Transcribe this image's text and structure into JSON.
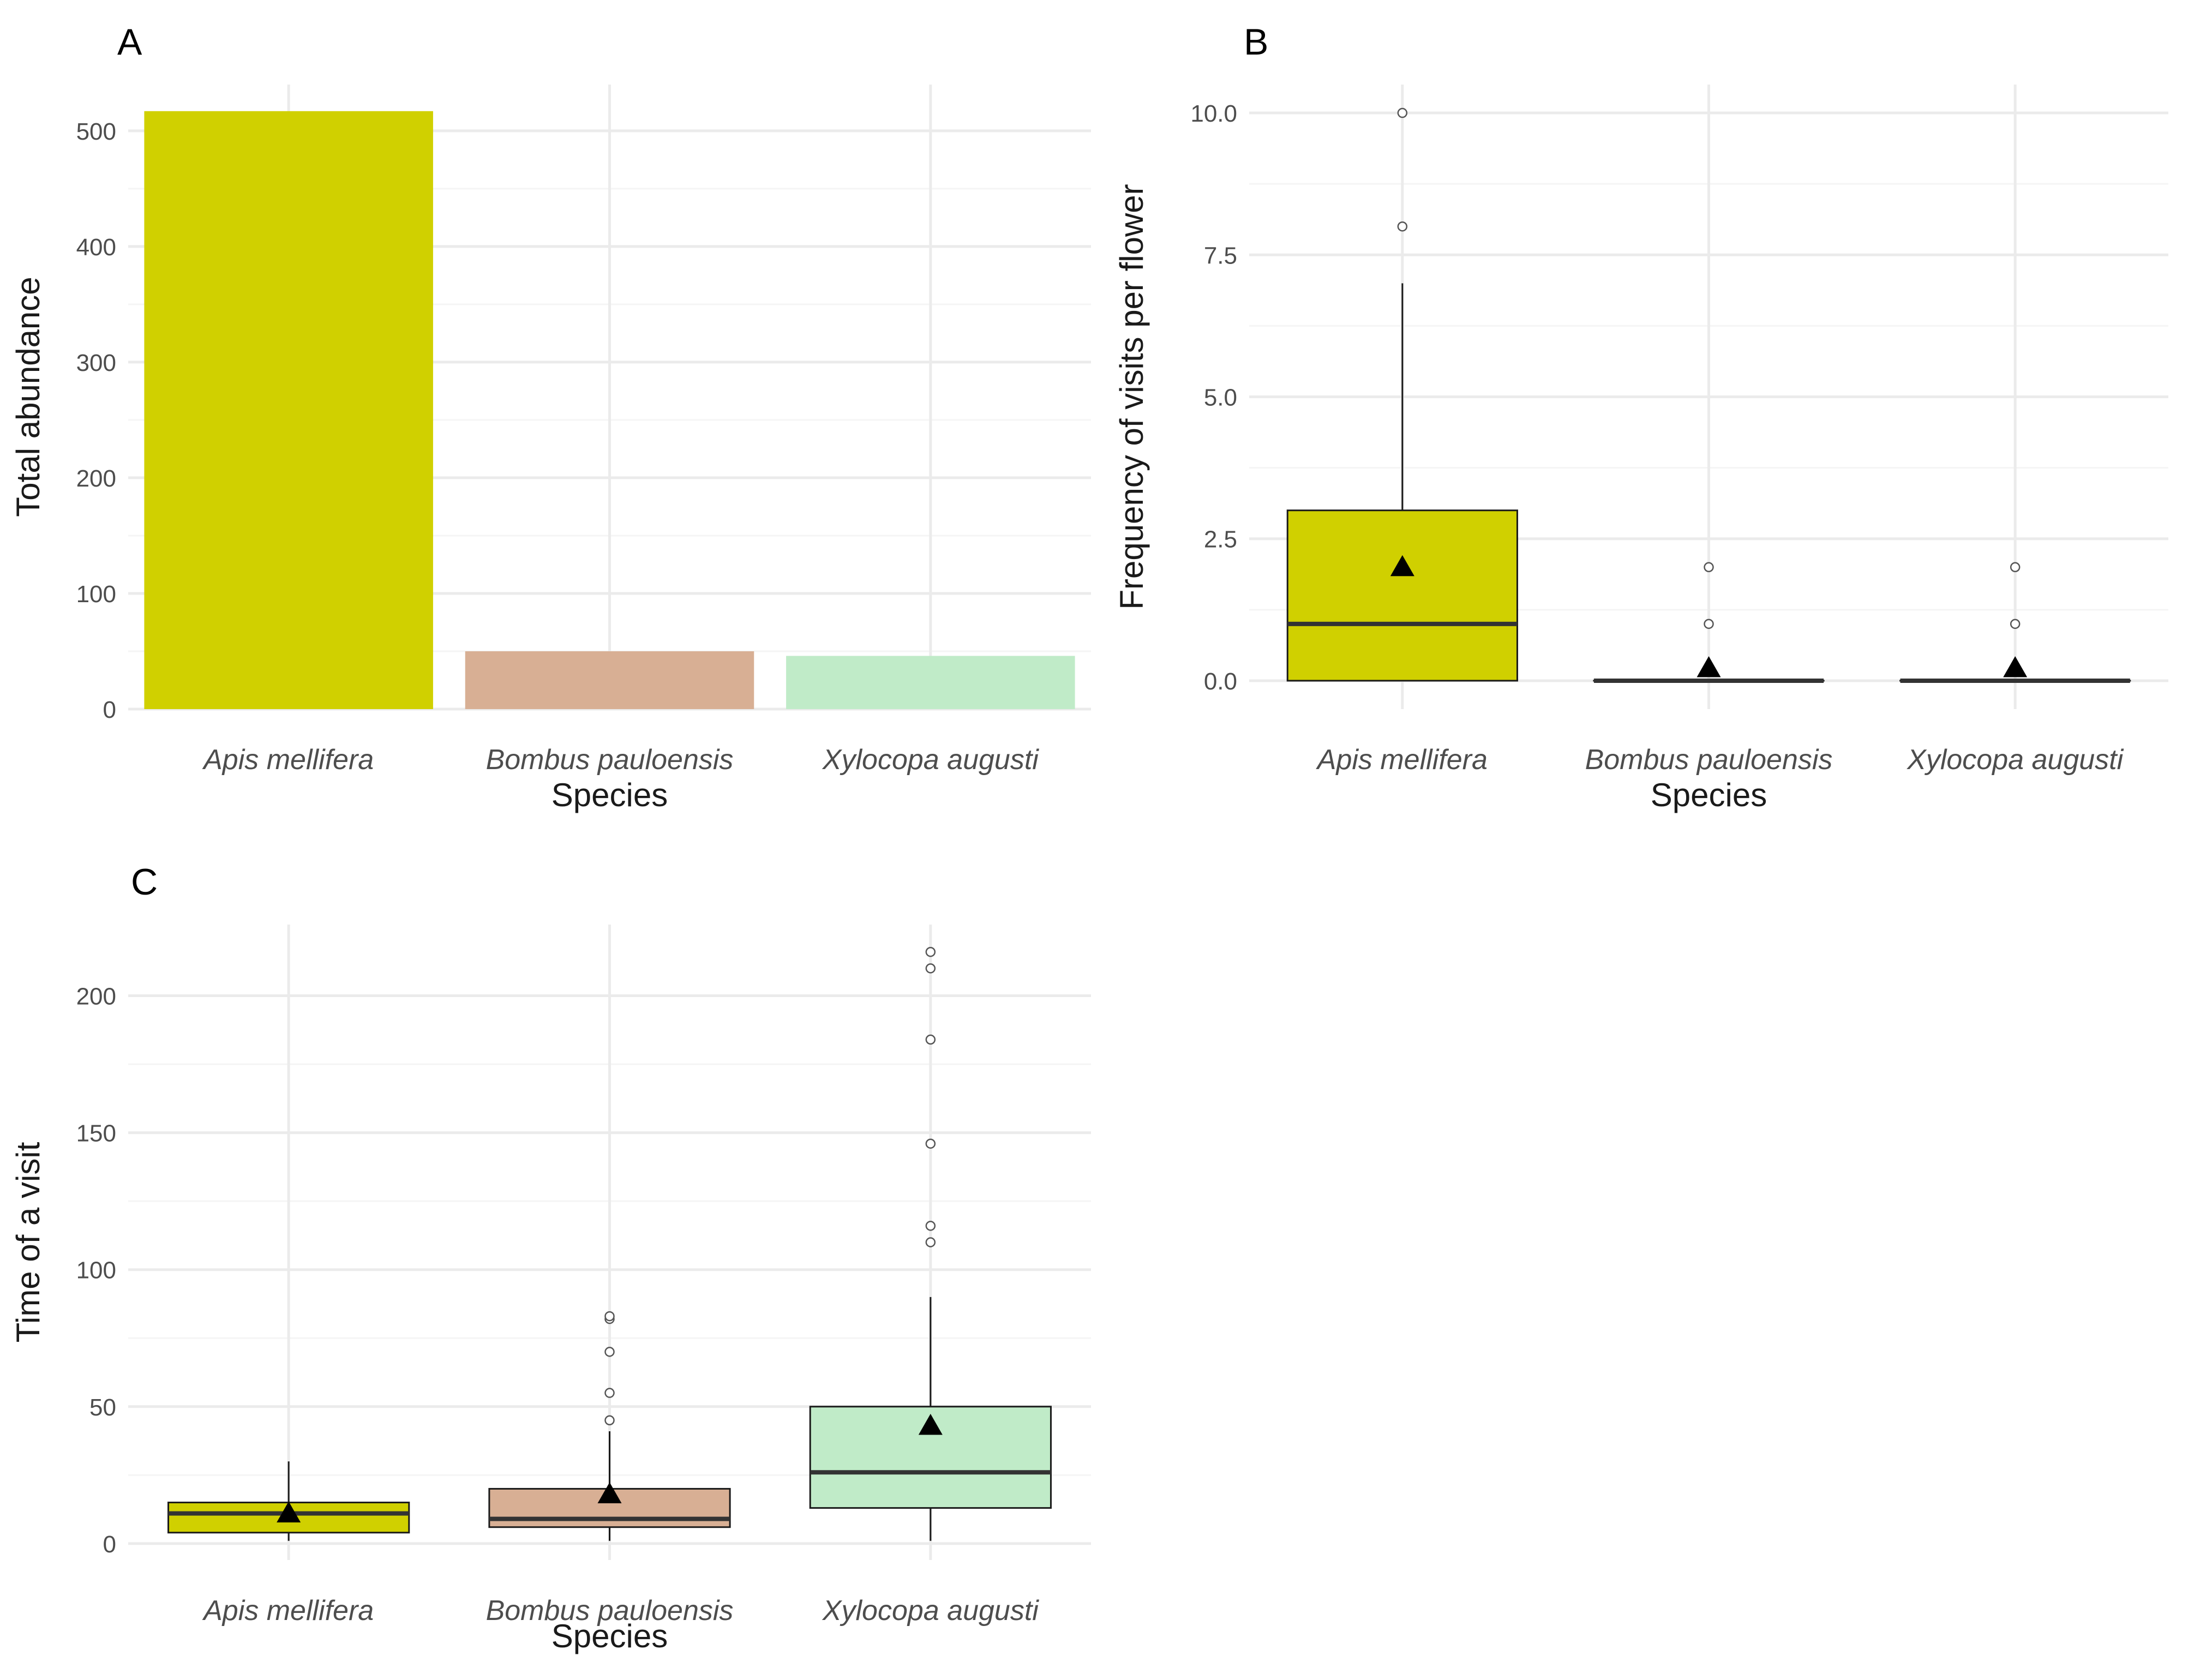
{
  "colors": {
    "Apis mellifera": "#d0d000",
    "Bombus pauloensis": "#d8af94",
    "Xylocopa augusti": "#c0ebc8",
    "grid_major": "#ebebeb",
    "grid_minor": "#f5f5f5",
    "ink": "#1a1a1a",
    "tick_text": "#4d4d4d"
  },
  "chart_data": [
    {
      "panel": "A",
      "type": "bar",
      "xlabel": "Species",
      "ylabel": "Total abundance",
      "categories": [
        "Apis mellifera",
        "Bombus pauloensis",
        "Xylocopa augusti"
      ],
      "values": [
        517,
        50,
        46
      ],
      "ylim": [
        0,
        540
      ],
      "yticks": [
        0,
        100,
        200,
        300,
        400,
        500
      ],
      "ytick_labels": [
        "0",
        "100",
        "200",
        "300",
        "400",
        "500"
      ],
      "legend": "none"
    },
    {
      "panel": "B",
      "type": "box",
      "xlabel": "Species",
      "ylabel": "Frequency of visits per flower",
      "categories": [
        "Apis mellifera",
        "Bombus pauloensis",
        "Xylocopa augusti"
      ],
      "boxes": [
        {
          "q1": 0,
          "median": 1,
          "q3": 3,
          "whisker_low": 0,
          "whisker_high": 7,
          "mean": 2.0,
          "outliers": [
            8,
            10
          ]
        },
        {
          "q1": 0,
          "median": 0,
          "q3": 0,
          "whisker_low": 0,
          "whisker_high": 0,
          "mean": 0.22,
          "outliers": [
            1,
            2
          ]
        },
        {
          "q1": 0,
          "median": 0,
          "q3": 0,
          "whisker_low": 0,
          "whisker_high": 0,
          "mean": 0.22,
          "outliers": [
            1,
            2
          ]
        }
      ],
      "ylim": [
        -0.5,
        10.5
      ],
      "yticks": [
        0,
        2.5,
        5,
        7.5,
        10
      ],
      "ytick_labels": [
        "0.0",
        "2.5",
        "5.0",
        "7.5",
        "10.0"
      ],
      "legend": "none"
    },
    {
      "panel": "C",
      "type": "box",
      "xlabel": "Species",
      "ylabel": "Time of a visit",
      "categories": [
        "Apis mellifera",
        "Bombus pauloensis",
        "Xylocopa augusti"
      ],
      "boxes": [
        {
          "q1": 4,
          "median": 11,
          "q3": 15,
          "whisker_low": 1,
          "whisker_high": 30,
          "mean": 11,
          "outliers": []
        },
        {
          "q1": 6,
          "median": 9,
          "q3": 20,
          "whisker_low": 1,
          "whisker_high": 41,
          "mean": 18,
          "outliers": [
            45,
            55,
            70,
            82,
            83
          ]
        },
        {
          "q1": 13,
          "median": 26,
          "q3": 50,
          "whisker_low": 1,
          "whisker_high": 90,
          "mean": 43,
          "outliers": [
            110,
            116,
            146,
            184,
            210,
            216
          ]
        }
      ],
      "ylim": [
        -6,
        226
      ],
      "yticks": [
        0,
        50,
        100,
        150,
        200
      ],
      "ytick_labels": [
        "0",
        "50",
        "100",
        "150",
        "200"
      ],
      "legend": "none"
    }
  ]
}
